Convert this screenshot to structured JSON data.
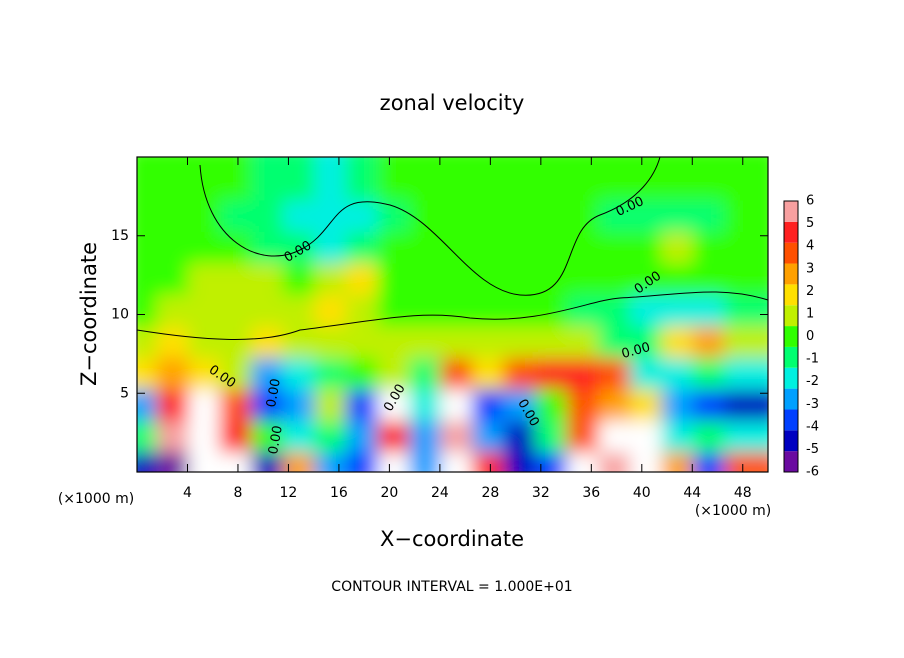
{
  "chart_data": {
    "type": "heatmap",
    "title": "zonal velocity",
    "x_label": "X−coordinate",
    "y_label": "Z−coordinate",
    "x_unit_label": "(×1000 m)",
    "annotation": "CONTOUR INTERVAL = 1.000E+01",
    "contour_labels": [
      "0.00",
      "0.00",
      "0.00",
      "0.00",
      "0.00",
      "0.00",
      "0.00",
      "0.00",
      "0.00"
    ],
    "xlim": [
      0,
      50
    ],
    "xticks": [
      4,
      8,
      12,
      16,
      20,
      24,
      28,
      32,
      36,
      40,
      44,
      48
    ],
    "ylim": [
      0,
      20
    ],
    "yticks": [
      5,
      10,
      15
    ],
    "colorbar_ticks": [
      6,
      5,
      4,
      3,
      2,
      1,
      0,
      -1,
      -2,
      -3,
      -4,
      -5,
      -6
    ],
    "colorscale": [
      "#6a0aa0",
      "#0000c0",
      "#0040ff",
      "#00a0ff",
      "#00f0e0",
      "#00ff70",
      "#30ff00",
      "#c0f000",
      "#ffe000",
      "#ffa000",
      "#ff5000",
      "#ff2020",
      "#f8a0a0"
    ],
    "x": [
      1.25,
      3.75,
      6.25,
      8.75,
      11.25,
      13.75,
      16.25,
      18.75,
      21.25,
      23.75,
      26.25,
      28.75,
      31.25,
      33.75,
      36.25,
      38.75,
      41.25,
      43.75,
      46.25,
      48.75
    ],
    "z": [
      1,
      3,
      5,
      7,
      9,
      11,
      13,
      15,
      17,
      19
    ],
    "values": [
      [
        -5,
        -6,
        7,
        7,
        -5,
        3,
        -3,
        -4,
        7,
        -3,
        7,
        5,
        -5,
        -4,
        7,
        6,
        7,
        3,
        -4,
        4
      ],
      [
        -1,
        6,
        8,
        5,
        0,
        -2,
        -1,
        -3,
        5,
        -3,
        6,
        -3,
        -5,
        -1,
        4,
        7,
        7,
        -2,
        -1,
        -2
      ],
      [
        -3,
        5,
        7,
        4,
        -4,
        -3,
        1,
        -4,
        8,
        -2,
        7,
        -4,
        -3,
        0,
        4,
        3,
        2,
        -3,
        -4,
        -5
      ],
      [
        2,
        3,
        2,
        1.5,
        -3,
        -2,
        -1,
        0.5,
        1,
        -1,
        4,
        2,
        4,
        5,
        5,
        4,
        -2,
        -2,
        -1,
        -2
      ],
      [
        1,
        2,
        1.5,
        1,
        2,
        1.5,
        1,
        1.5,
        1,
        1,
        1,
        1.5,
        1,
        1,
        1,
        -0.5,
        -1,
        2.5,
        3,
        1
      ],
      [
        0.5,
        1,
        1.5,
        1,
        1,
        1.5,
        2,
        1,
        0.5,
        0.5,
        0.5,
        0,
        0,
        0,
        -0.5,
        -1,
        -1.5,
        -2,
        -1.5,
        -1
      ],
      [
        0.5,
        0.5,
        1,
        1,
        1,
        0.5,
        1.5,
        2.5,
        0.5,
        0.5,
        0.5,
        0.5,
        0,
        0,
        0,
        0,
        0,
        0.5,
        0.5,
        0
      ],
      [
        0,
        0.5,
        0.5,
        0,
        -0.5,
        -1,
        -1.5,
        -0.5,
        0,
        0,
        0.5,
        0.5,
        0.5,
        0,
        0,
        0.5,
        0.5,
        1.5,
        0.5,
        0.5
      ],
      [
        0,
        0,
        0,
        -0.5,
        -1,
        -1.5,
        -2,
        -1.5,
        -0.5,
        0,
        0,
        0,
        0,
        0,
        0,
        -0.5,
        -1,
        -1,
        -0.5,
        0
      ],
      [
        0,
        0,
        0,
        0,
        -0.5,
        -1,
        -1.5,
        -1,
        0,
        0,
        0,
        0,
        0,
        0,
        0,
        0,
        0.5,
        0.5,
        0.5,
        0
      ]
    ]
  }
}
